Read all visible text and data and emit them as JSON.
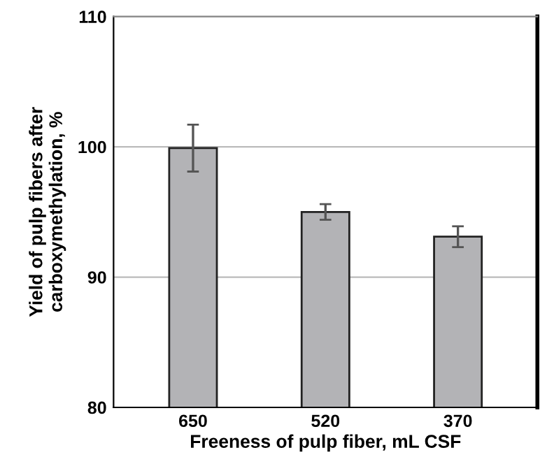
{
  "chart_data": {
    "type": "bar",
    "xlabel": "Freeness of pulp fiber, mL CSF",
    "ylabel": "Yield of pulp fibers after\ncarboxymethylation, %",
    "categories": [
      "650",
      "520",
      "370"
    ],
    "values": [
      99.9,
      95.0,
      93.1
    ],
    "errors": [
      1.8,
      0.6,
      0.8
    ],
    "color": "#b3b3b6",
    "ylim": [
      80,
      110
    ],
    "yticks": [
      80,
      90,
      100,
      110
    ],
    "grid": "y"
  }
}
